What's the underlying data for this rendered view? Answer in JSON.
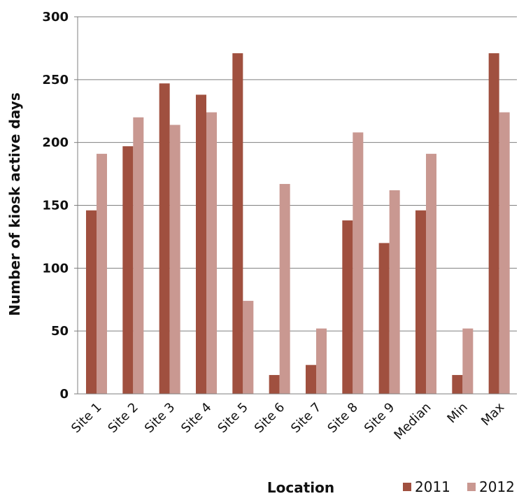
{
  "chart_data": {
    "type": "bar",
    "title": "",
    "xlabel": "Location",
    "ylabel": "Number of kiosk active days",
    "ylim": [
      0,
      300
    ],
    "yticks": [
      0,
      50,
      100,
      150,
      200,
      250,
      300
    ],
    "grid": true,
    "legend_position": "bottom-right",
    "categories": [
      "Site 1",
      "Site 2",
      "Site 3",
      "Site 4",
      "Site 5",
      "Site 6",
      "Site 7",
      "Site 8",
      "Site 9",
      "Median",
      "Min",
      "Max"
    ],
    "series": [
      {
        "name": "2011",
        "color": "#A0503F",
        "values": [
          146,
          197,
          247,
          238,
          271,
          15,
          23,
          138,
          120,
          146,
          15,
          271
        ]
      },
      {
        "name": "2012",
        "color": "#C99891",
        "values": [
          191,
          220,
          214,
          224,
          74,
          167,
          52,
          208,
          162,
          191,
          52,
          224
        ]
      }
    ]
  }
}
